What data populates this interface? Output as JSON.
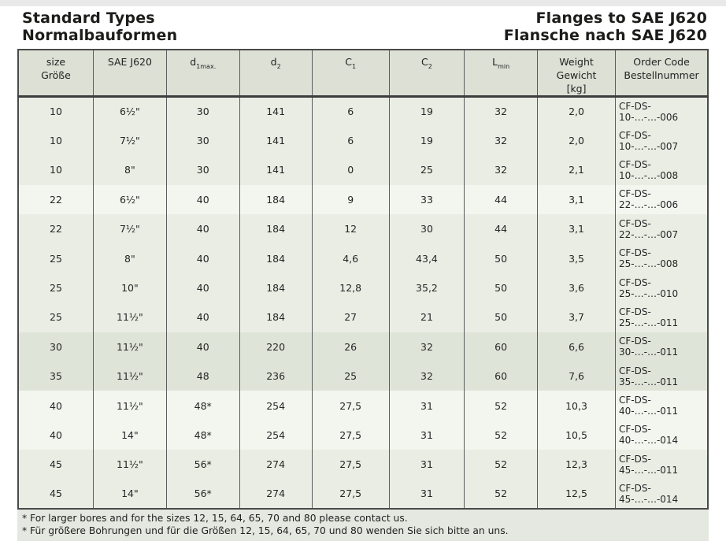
{
  "titles": {
    "left_line1": "Standard Types",
    "left_line2": "Normalbauformen",
    "right_line1": "Flanges to SAE J620",
    "right_line2": "Flansche nach SAE J620"
  },
  "colors": {
    "header_bg": "#dce0d5",
    "row_mid": "#e9ede4",
    "row_light": "#f3f5ef",
    "row_dark": "#dfe4d8",
    "footnote_bg": "#e5e8e0",
    "border": "#4a4a4a"
  },
  "table": {
    "columns": [
      {
        "id": "size",
        "lines": [
          {
            "t": "size"
          },
          {
            "t": "Größe"
          }
        ]
      },
      {
        "id": "sae",
        "lines": [
          {
            "t": "SAE J620"
          }
        ]
      },
      {
        "id": "d1max",
        "lines": [
          {
            "t": "d",
            "sub": "1max."
          }
        ]
      },
      {
        "id": "d2",
        "lines": [
          {
            "t": "d",
            "sub": "2"
          }
        ]
      },
      {
        "id": "c1",
        "lines": [
          {
            "t": "C",
            "sub": "1"
          }
        ]
      },
      {
        "id": "c2",
        "lines": [
          {
            "t": "C",
            "sub": "2"
          }
        ]
      },
      {
        "id": "lmin",
        "lines": [
          {
            "t": "L",
            "sub": "min"
          }
        ]
      },
      {
        "id": "weight",
        "lines": [
          {
            "t": "Weight"
          },
          {
            "t": "Gewicht"
          },
          {
            "t": "[kg]"
          }
        ]
      },
      {
        "id": "order",
        "lines": [
          {
            "t": "Order Code"
          },
          {
            "t": "Bestellnummer"
          }
        ]
      }
    ],
    "row_shades": [
      "mid",
      "mid",
      "mid",
      "light",
      "mid",
      "mid",
      "mid",
      "mid",
      "dark",
      "dark",
      "light",
      "light",
      "mid",
      "mid"
    ],
    "rows": [
      [
        "10",
        "6½\"",
        "30",
        "141",
        "6",
        "19",
        "32",
        "2,0",
        "CF-DS-10-…-…-006"
      ],
      [
        "10",
        "7½\"",
        "30",
        "141",
        "6",
        "19",
        "32",
        "2,0",
        "CF-DS-10-…-…-007"
      ],
      [
        "10",
        "8\"",
        "30",
        "141",
        "0",
        "25",
        "32",
        "2,1",
        "CF-DS-10-…-…-008"
      ],
      [
        "22",
        "6½\"",
        "40",
        "184",
        "9",
        "33",
        "44",
        "3,1",
        "CF-DS-22-…-…-006"
      ],
      [
        "22",
        "7½\"",
        "40",
        "184",
        "12",
        "30",
        "44",
        "3,1",
        "CF-DS-22-…-…-007"
      ],
      [
        "25",
        "8\"",
        "40",
        "184",
        "4,6",
        "43,4",
        "50",
        "3,5",
        "CF-DS-25-…-…-008"
      ],
      [
        "25",
        "10\"",
        "40",
        "184",
        "12,8",
        "35,2",
        "50",
        "3,6",
        "CF-DS-25-…-…-010"
      ],
      [
        "25",
        "11½\"",
        "40",
        "184",
        "27",
        "21",
        "50",
        "3,7",
        "CF-DS-25-…-…-011"
      ],
      [
        "30",
        "11½\"",
        "40",
        "220",
        "26",
        "32",
        "60",
        "6,6",
        "CF-DS-30-…-…-011"
      ],
      [
        "35",
        "11½\"",
        "48",
        "236",
        "25",
        "32",
        "60",
        "7,6",
        "CF-DS-35-…-…-011"
      ],
      [
        "40",
        "11½\"",
        "48*",
        "254",
        "27,5",
        "31",
        "52",
        "10,3",
        "CF-DS-40-…-…-011"
      ],
      [
        "40",
        "14\"",
        "48*",
        "254",
        "27,5",
        "31",
        "52",
        "10,5",
        "CF-DS-40-…-…-014"
      ],
      [
        "45",
        "11½\"",
        "56*",
        "274",
        "27,5",
        "31",
        "52",
        "12,3",
        "CF-DS-45-…-…-011"
      ],
      [
        "45",
        "14\"",
        "56*",
        "274",
        "27,5",
        "31",
        "52",
        "12,5",
        "CF-DS-45-…-…-014"
      ]
    ]
  },
  "footnotes": {
    "en": "* For larger bores and for the sizes 12, 15, 64, 65, 70 and 80 please contact us.",
    "de": "* Für größere Bohrungen und für die Größen 12, 15, 64, 65, 70 und 80 wenden Sie sich bitte an uns."
  }
}
